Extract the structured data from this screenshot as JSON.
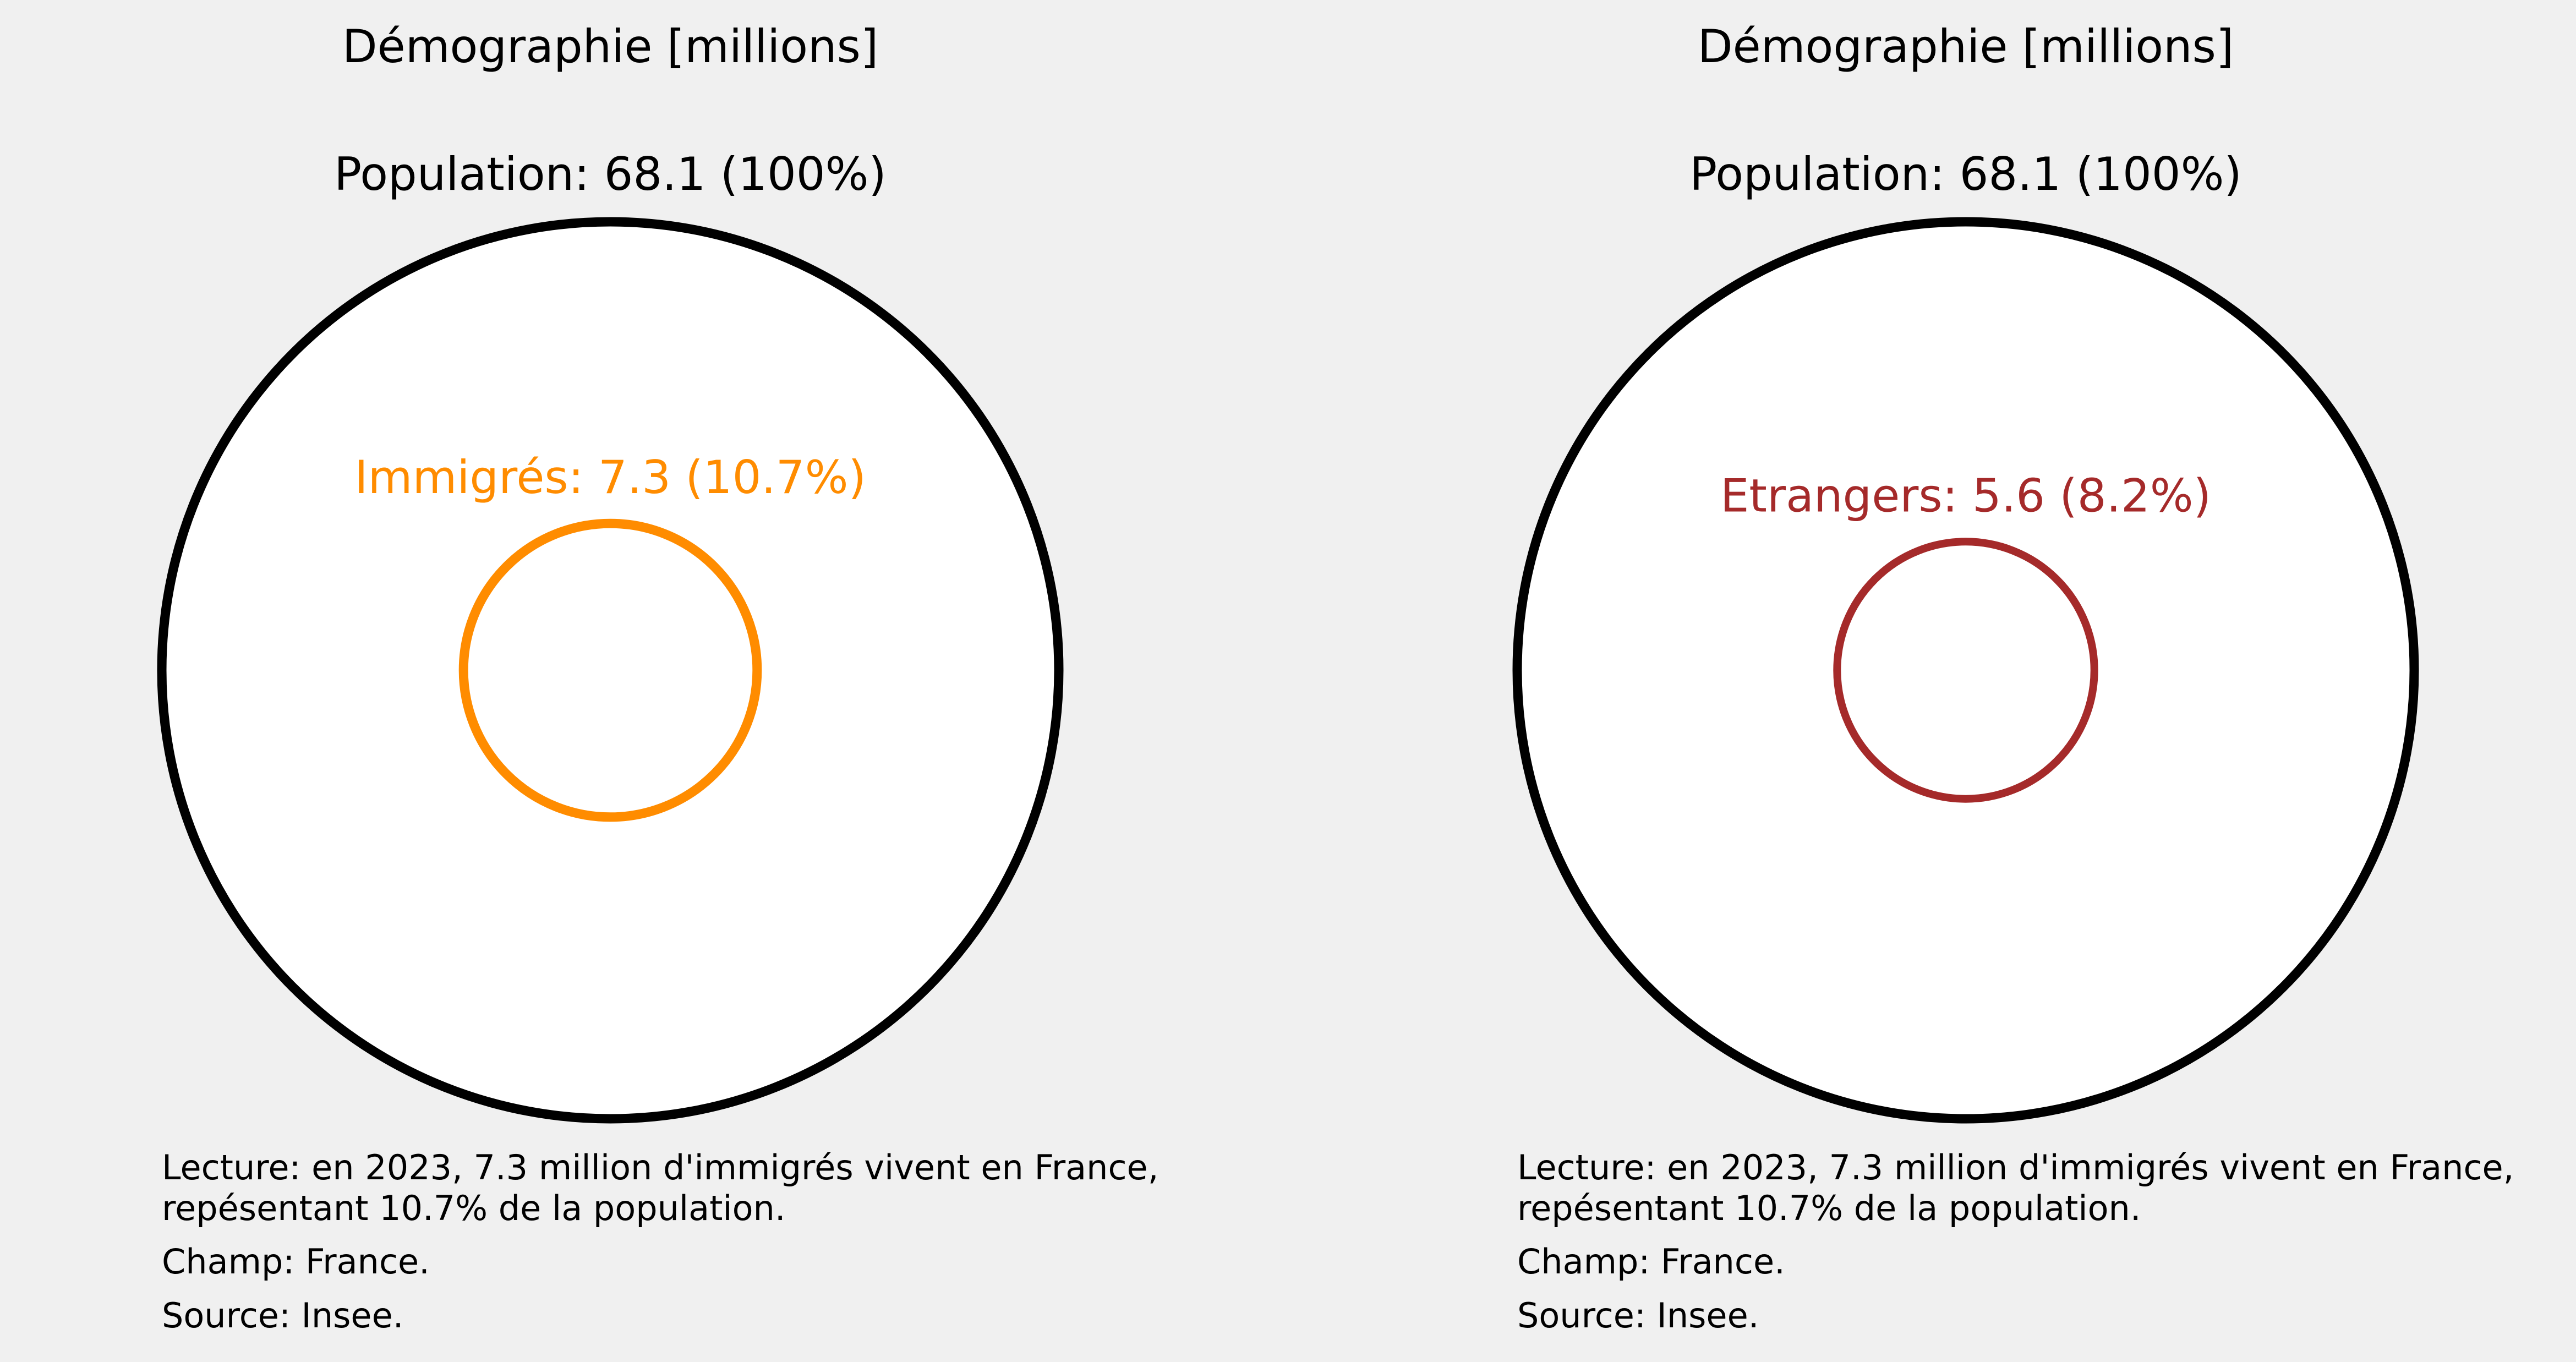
{
  "chart_data": [
    {
      "type": "bubble",
      "title": "Démographie [millions]",
      "total": {
        "label": "Population: 68.1 (100%)",
        "value": 68.1,
        "share": 1.0,
        "color": "#000000"
      },
      "subset": {
        "label": "Immigrés: 7.3 (10.7%)",
        "value": 7.3,
        "share": 0.107,
        "color": "#ff8c00"
      },
      "notes": {
        "lecture_line1": "Lecture: en 2023, 7.3 million d'immigrés vivent en France,",
        "lecture_line2": "repésentant 10.7% de la population.",
        "champ": "Champ: France.",
        "source": "Source: Insee."
      }
    },
    {
      "type": "bubble",
      "title": "Démographie [millions]",
      "total": {
        "label": "Population: 68.1 (100%)",
        "value": 68.1,
        "share": 1.0,
        "color": "#000000"
      },
      "subset": {
        "label": "Etrangers: 5.6 (8.2%)",
        "value": 5.6,
        "share": 0.082,
        "color": "#a52a2a"
      },
      "notes": {
        "lecture_line1": "Lecture: en 2023, 7.3 million d'immigrés vivent en France,",
        "lecture_line2": "repésentant 10.7% de la population.",
        "champ": "Champ: France.",
        "source": "Source: Insee."
      }
    }
  ]
}
